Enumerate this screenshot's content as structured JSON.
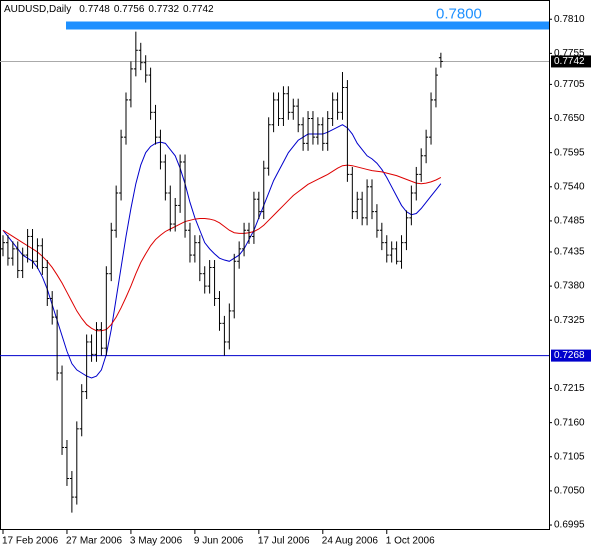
{
  "chart_data": {
    "type": "ohlc",
    "title": "AUDUSD,Daily",
    "categories": [
      "17 Feb 2006",
      null,
      null,
      null,
      null,
      null,
      null,
      null,
      null,
      null,
      null,
      null,
      null,
      "27 Mar 2006",
      null,
      null,
      null,
      null,
      null,
      null,
      null,
      null,
      null,
      null,
      null,
      null,
      "3 May 2006",
      null,
      null,
      null,
      null,
      null,
      null,
      null,
      null,
      null,
      null,
      null,
      null,
      "9 Jun 2006",
      null,
      null,
      null,
      null,
      null,
      null,
      null,
      null,
      null,
      null,
      null,
      null,
      "17 Jul 2006",
      null,
      null,
      null,
      null,
      null,
      null,
      null,
      null,
      null,
      null,
      null,
      null,
      "24 Aug 2006",
      null,
      null,
      null,
      null,
      null,
      null,
      null,
      null,
      null,
      null,
      null,
      null,
      "1 Oct 2006",
      null,
      null,
      null,
      null,
      null,
      null,
      null,
      null,
      null,
      null,
      null
    ],
    "open": [
      0.744,
      0.745,
      0.7425,
      0.744,
      0.7405,
      0.743,
      0.746,
      0.742,
      0.7445,
      0.741,
      0.736,
      0.733,
      0.724,
      0.712,
      0.707,
      0.704,
      0.715,
      0.721,
      0.729,
      0.727,
      0.731,
      0.728,
      0.74,
      0.747,
      0.753,
      0.762,
      0.768,
      0.773,
      0.776,
      0.774,
      0.772,
      0.766,
      0.762,
      0.758,
      0.753,
      0.748,
      0.751,
      0.758,
      0.747,
      0.743,
      0.745,
      0.74,
      0.738,
      0.741,
      0.736,
      0.732,
      0.729,
      0.734,
      0.742,
      0.744,
      0.747,
      0.746,
      0.752,
      0.75,
      0.757,
      0.764,
      0.768,
      0.765,
      0.769,
      0.766,
      0.767,
      0.764,
      0.761,
      0.765,
      0.762,
      0.764,
      0.761,
      0.765,
      0.768,
      0.766,
      0.77,
      0.756,
      0.75,
      0.752,
      0.749,
      0.754,
      0.75,
      0.747,
      0.745,
      0.743,
      0.744,
      0.742,
      0.745,
      0.749,
      0.753,
      0.756,
      0.759,
      0.762,
      0.768,
      0.7748
    ],
    "high": [
      0.7462,
      0.7462,
      0.7452,
      0.7452,
      0.7442,
      0.7472,
      0.7472,
      0.7457,
      0.7457,
      0.7422,
      0.7372,
      0.7342,
      0.7252,
      0.7132,
      0.7082,
      0.7162,
      0.7222,
      0.7302,
      0.7302,
      0.7322,
      0.7322,
      0.7412,
      0.7482,
      0.7542,
      0.7632,
      0.7692,
      0.7742,
      0.779,
      0.7772,
      0.7752,
      0.7732,
      0.7672,
      0.7632,
      0.7592,
      0.7542,
      0.7522,
      0.7592,
      0.7592,
      0.7482,
      0.7462,
      0.7462,
      0.7412,
      0.7422,
      0.7422,
      0.7372,
      0.7332,
      0.7352,
      0.7432,
      0.7452,
      0.7482,
      0.7482,
      0.7532,
      0.7532,
      0.7582,
      0.7652,
      0.7692,
      0.7692,
      0.7702,
      0.7702,
      0.7682,
      0.7682,
      0.7652,
      0.7662,
      0.7662,
      0.7652,
      0.7652,
      0.7662,
      0.7692,
      0.7692,
      0.7725,
      0.7712,
      0.7572,
      0.7532,
      0.7532,
      0.7552,
      0.7552,
      0.7512,
      0.7482,
      0.7462,
      0.7452,
      0.7452,
      0.7462,
      0.7502,
      0.7542,
      0.7572,
      0.7602,
      0.7632,
      0.7692,
      0.7732,
      0.7756
    ],
    "low": [
      0.7428,
      0.7413,
      0.7413,
      0.7393,
      0.7393,
      0.7418,
      0.7408,
      0.7408,
      0.7398,
      0.7348,
      0.7318,
      0.7228,
      0.7108,
      0.7058,
      0.7015,
      0.7028,
      0.7138,
      0.7198,
      0.7258,
      0.7258,
      0.7268,
      0.7268,
      0.7388,
      0.7458,
      0.7518,
      0.7608,
      0.7668,
      0.7718,
      0.7728,
      0.7708,
      0.7648,
      0.7608,
      0.7568,
      0.7518,
      0.7468,
      0.7468,
      0.7498,
      0.7458,
      0.7418,
      0.7418,
      0.7388,
      0.7368,
      0.7368,
      0.7348,
      0.7308,
      0.7268,
      0.7278,
      0.7328,
      0.7408,
      0.7428,
      0.7448,
      0.7448,
      0.7488,
      0.7488,
      0.7558,
      0.7628,
      0.7638,
      0.7638,
      0.7648,
      0.7648,
      0.7628,
      0.7598,
      0.7598,
      0.7608,
      0.7608,
      0.7598,
      0.7598,
      0.7638,
      0.7648,
      0.7648,
      0.7548,
      0.7488,
      0.7488,
      0.7478,
      0.7478,
      0.7488,
      0.7458,
      0.7438,
      0.7418,
      0.7418,
      0.7415,
      0.7408,
      0.7438,
      0.7478,
      0.7518,
      0.7548,
      0.7578,
      0.7608,
      0.7668,
      0.7732
    ],
    "close": [
      0.745,
      0.7425,
      0.744,
      0.7405,
      0.743,
      0.746,
      0.742,
      0.7445,
      0.741,
      0.736,
      0.733,
      0.724,
      0.712,
      0.707,
      0.704,
      0.715,
      0.721,
      0.729,
      0.727,
      0.731,
      0.728,
      0.74,
      0.747,
      0.753,
      0.762,
      0.768,
      0.773,
      0.776,
      0.774,
      0.772,
      0.766,
      0.762,
      0.758,
      0.753,
      0.748,
      0.751,
      0.758,
      0.747,
      0.743,
      0.745,
      0.74,
      0.738,
      0.741,
      0.736,
      0.732,
      0.729,
      0.734,
      0.742,
      0.744,
      0.747,
      0.746,
      0.752,
      0.75,
      0.757,
      0.764,
      0.768,
      0.765,
      0.769,
      0.766,
      0.767,
      0.764,
      0.761,
      0.765,
      0.762,
      0.764,
      0.761,
      0.765,
      0.768,
      0.766,
      0.77,
      0.756,
      0.75,
      0.752,
      0.749,
      0.754,
      0.75,
      0.747,
      0.745,
      0.743,
      0.744,
      0.742,
      0.745,
      0.749,
      0.753,
      0.756,
      0.759,
      0.762,
      0.768,
      0.772,
      0.7742
    ],
    "color": "#000000",
    "lines": [
      {
        "color": "#0000cc",
        "values": [
          0.747,
          0.746,
          0.745,
          0.744,
          0.743,
          0.7425,
          0.742,
          0.741,
          0.7395,
          0.7375,
          0.735,
          0.7325,
          0.73,
          0.7275,
          0.7255,
          0.7245,
          0.724,
          0.7235,
          0.7232,
          0.7235,
          0.7245,
          0.727,
          0.731,
          0.736,
          0.741,
          0.746,
          0.7505,
          0.7545,
          0.7575,
          0.7595,
          0.7605,
          0.761,
          0.7612,
          0.761,
          0.76,
          0.759,
          0.757,
          0.7545,
          0.7515,
          0.749,
          0.747,
          0.745,
          0.744,
          0.7432,
          0.7425,
          0.7422,
          0.742,
          0.7425,
          0.743,
          0.744,
          0.7455,
          0.747,
          0.749,
          0.751,
          0.753,
          0.755,
          0.7565,
          0.758,
          0.7595,
          0.7605,
          0.7615,
          0.762,
          0.7625,
          0.7625,
          0.7625,
          0.7625,
          0.7628,
          0.7632,
          0.7636,
          0.764,
          0.7635,
          0.7625,
          0.761,
          0.76,
          0.759,
          0.7585,
          0.7578,
          0.7568,
          0.7555,
          0.754,
          0.7525,
          0.751,
          0.75,
          0.7495,
          0.7497,
          0.7505,
          0.7515,
          0.7525,
          0.7535,
          0.7545
        ]
      },
      {
        "color": "#dd0000",
        "values": [
          0.747,
          0.7465,
          0.746,
          0.7455,
          0.745,
          0.7445,
          0.744,
          0.7435,
          0.7428,
          0.742,
          0.741,
          0.7398,
          0.7385,
          0.737,
          0.7355,
          0.734,
          0.7328,
          0.7318,
          0.7312,
          0.7308,
          0.7308,
          0.731,
          0.7318,
          0.733,
          0.7345,
          0.7362,
          0.738,
          0.74,
          0.7418,
          0.7432,
          0.7445,
          0.7455,
          0.7462,
          0.7468,
          0.7472,
          0.7476,
          0.748,
          0.7484,
          0.7486,
          0.7488,
          0.7489,
          0.7489,
          0.7488,
          0.7486,
          0.7482,
          0.7476,
          0.747,
          0.7466,
          0.7465,
          0.7465,
          0.7466,
          0.7468,
          0.7472,
          0.7478,
          0.7486,
          0.7494,
          0.7502,
          0.751,
          0.7518,
          0.7526,
          0.7532,
          0.7538,
          0.7544,
          0.7548,
          0.7552,
          0.7556,
          0.756,
          0.7565,
          0.757,
          0.7574,
          0.7575,
          0.7574,
          0.7572,
          0.757,
          0.7568,
          0.7566,
          0.7565,
          0.7564,
          0.7562,
          0.756,
          0.7558,
          0.7555,
          0.7552,
          0.7549,
          0.7546,
          0.7545,
          0.7546,
          0.7548,
          0.7551,
          0.7555
        ]
      }
    ],
    "hlines": [
      {
        "value": {
          "value": 0.78,
          "label": "0.7800"
        },
        "color": "#1e90ff"
      },
      {
        "value": 0.7268,
        "color": "#0000cc"
      }
    ],
    "ylim": [
      0.6987,
      0.7841
    ],
    "yticks": [
      {
        "value": 0.781,
        "label": "0.7810"
      },
      0.7755,
      0.7705,
      {
        "value": 0.765,
        "label": "0.7650"
      },
      0.7595,
      {
        "value": 0.754,
        "label": "0.7540"
      },
      0.7485,
      0.7435,
      {
        "value": 0.738,
        "label": "0.7380"
      },
      0.7325,
      0.7215,
      {
        "value": 0.716,
        "label": "0.7160"
      },
      0.7105,
      {
        "value": 0.705,
        "label": "0.7050"
      },
      0.6995
    ]
  }
}
